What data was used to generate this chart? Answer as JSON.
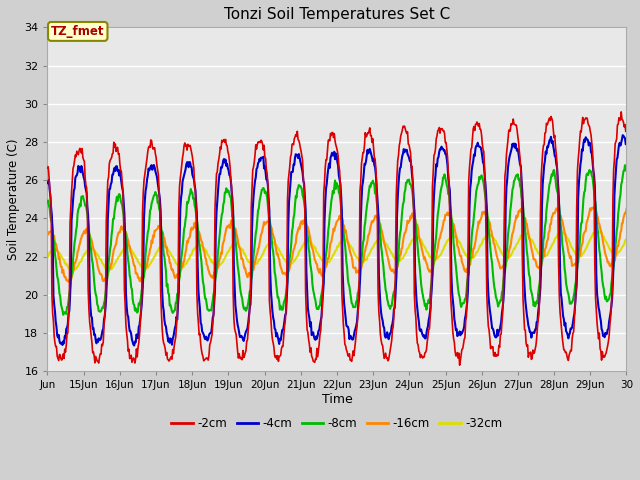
{
  "title": "Tonzi Soil Temperatures Set C",
  "xlabel": "Time",
  "ylabel": "Soil Temperature (C)",
  "annotation_text": "TZ_fmet",
  "ylim": [
    16,
    34
  ],
  "xlim": [
    14,
    30
  ],
  "legend_labels": [
    "-2cm",
    "-4cm",
    "-8cm",
    "-16cm",
    "-32cm"
  ],
  "legend_colors": [
    "#dd0000",
    "#0000cc",
    "#00bb00",
    "#ff8800",
    "#dddd00"
  ],
  "background_color": "#e8e8e8",
  "grid_color": "#ffffff",
  "tick_labels": [
    "Jun",
    "15Jun",
    "16Jun",
    "17Jun",
    "18Jun",
    "19Jun",
    "20Jun",
    "21Jun",
    "22Jun",
    "23Jun",
    "24Jun",
    "25Jun",
    "26Jun",
    "27Jun",
    "28Jun",
    "29Jun",
    "30"
  ],
  "figsize": [
    6.4,
    4.8
  ],
  "dpi": 100
}
